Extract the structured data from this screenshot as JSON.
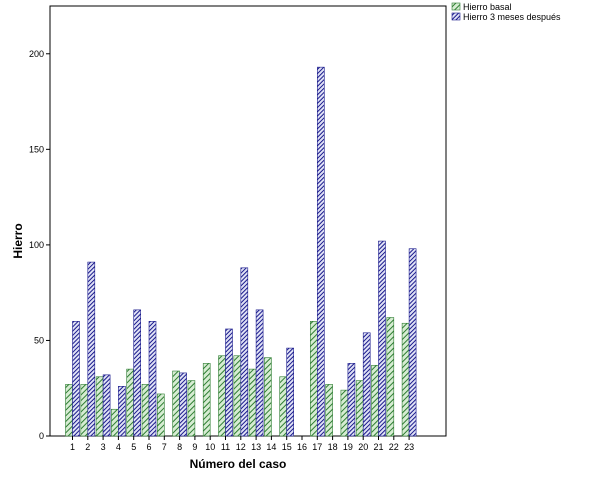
{
  "chart_data": {
    "type": "bar",
    "xlabel": "Número del caso",
    "ylabel": "Hierro",
    "ylim": [
      0,
      225
    ],
    "yticks": [
      0,
      50,
      100,
      150,
      200
    ],
    "categories": [
      "1",
      "2",
      "3",
      "4",
      "5",
      "6",
      "7",
      "8",
      "9",
      "10",
      "11",
      "12",
      "13",
      "14",
      "15",
      "16",
      "17",
      "18",
      "19",
      "20",
      "21",
      "22",
      "23"
    ],
    "series": [
      {
        "name": "Hierro basal",
        "color": "#2e7d32",
        "fill": "#d6ecd2",
        "values": [
          27,
          27,
          31,
          14,
          35,
          27,
          22,
          34,
          29,
          38,
          42,
          42,
          35,
          41,
          31,
          null,
          60,
          27,
          24,
          29,
          37,
          62,
          59
        ]
      },
      {
        "name": "Hierro 3 meses después",
        "color": "#1a1a8c",
        "fill": "#dfe1f5",
        "values": [
          60,
          91,
          32,
          26,
          66,
          60,
          null,
          33,
          null,
          null,
          56,
          88,
          66,
          null,
          46,
          null,
          193,
          null,
          38,
          54,
          102,
          null,
          98
        ]
      }
    ],
    "legend": "top-right",
    "grid": false
  }
}
